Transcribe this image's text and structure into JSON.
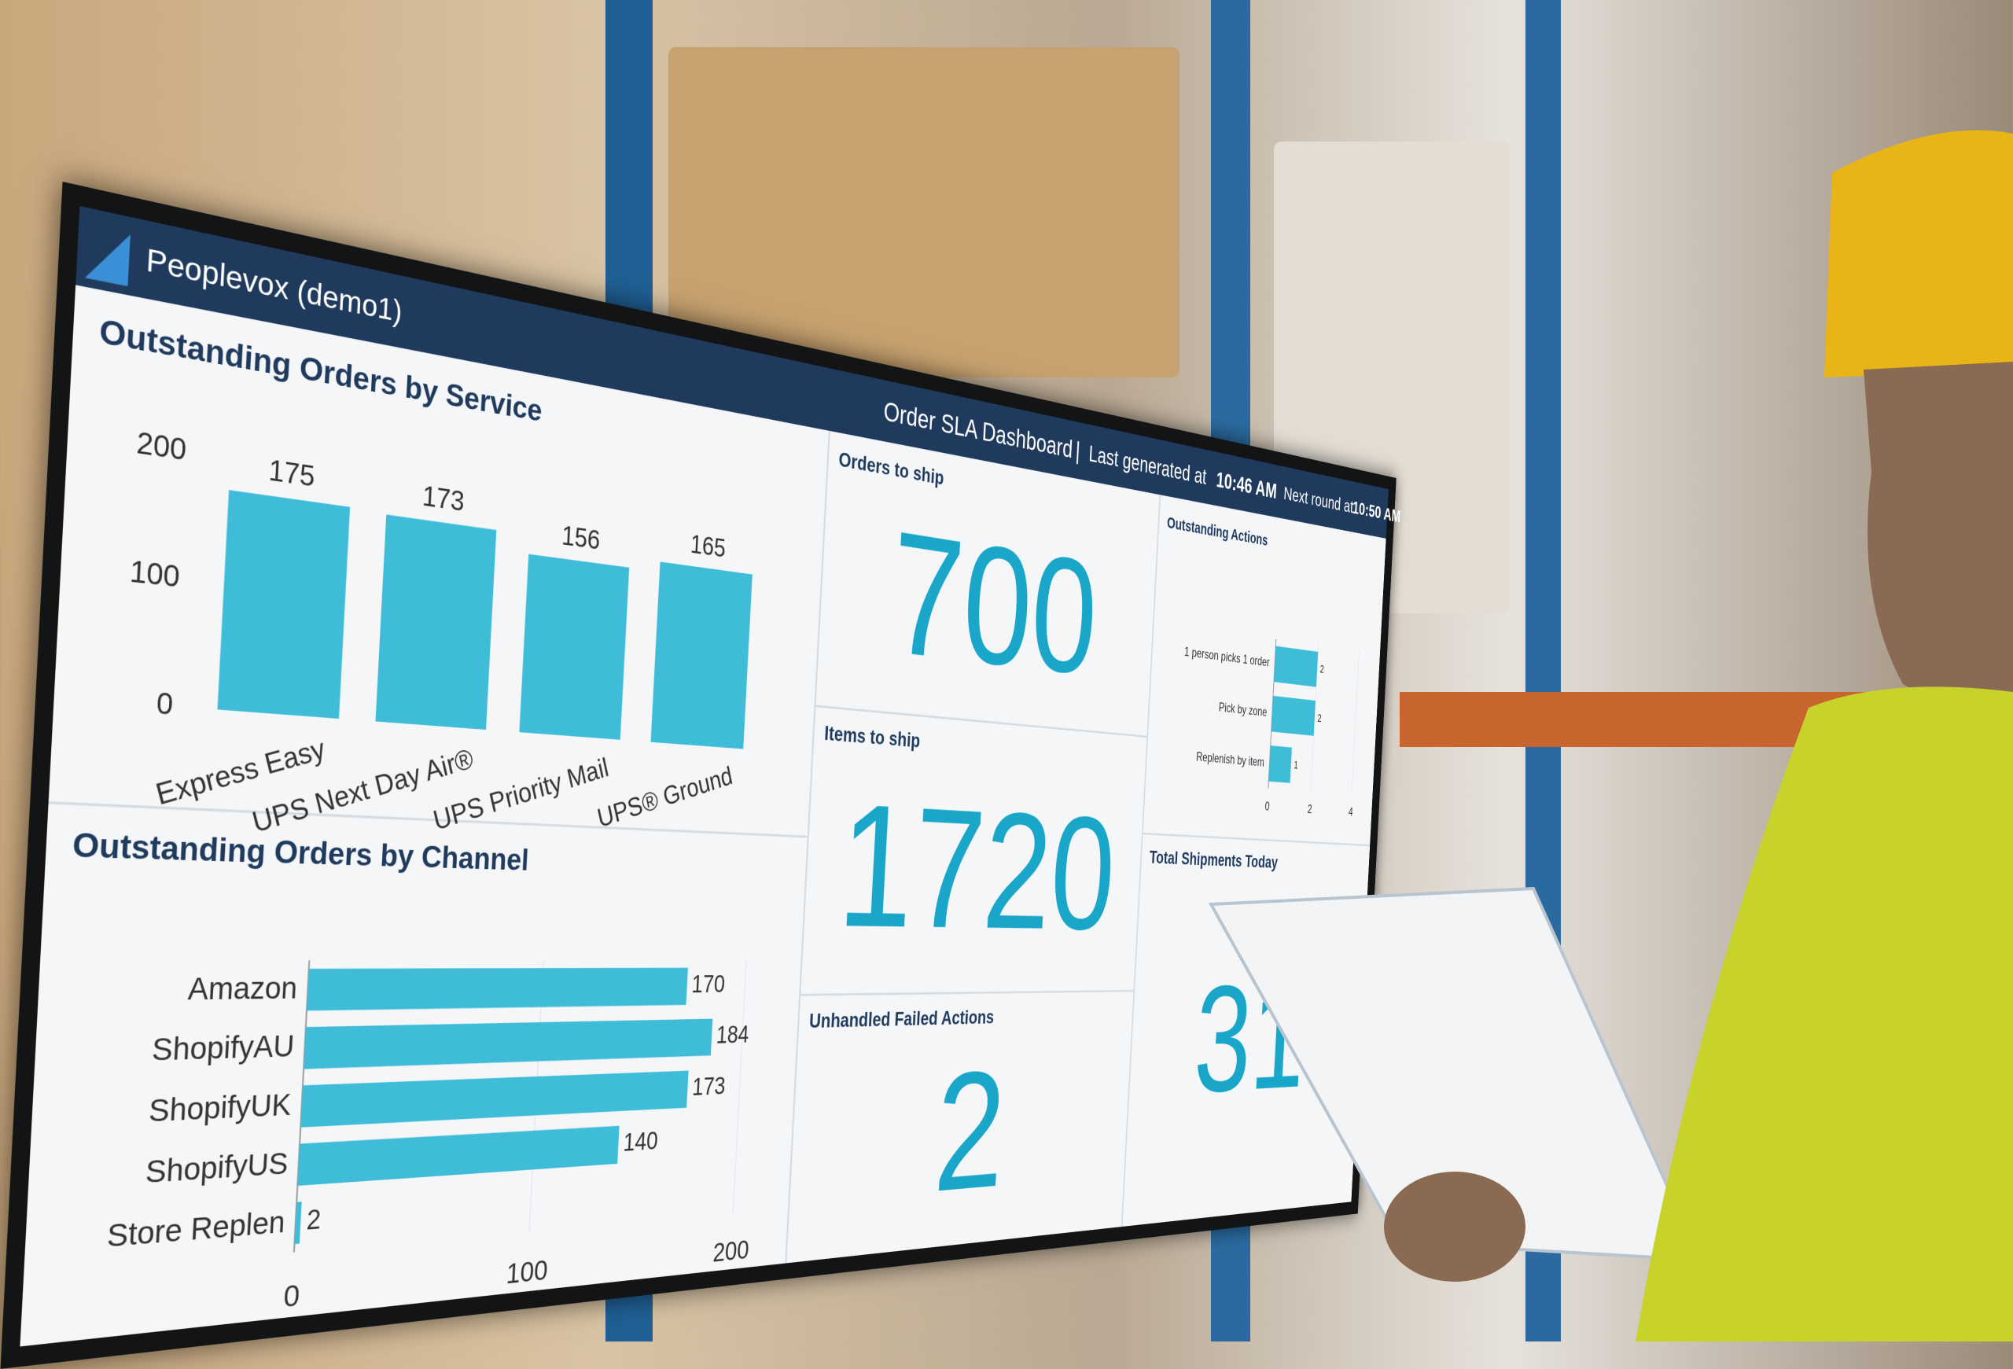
{
  "header": {
    "brand": "Peoplevox (demo1)",
    "title": "Order SLA Dashboard",
    "separator": "|",
    "generated_label": "Last generated at",
    "generated_time": "10:46 AM",
    "next_label": "Next round at",
    "next_time": "10:50 AM"
  },
  "chart_data": [
    {
      "type": "bar",
      "title": "Outstanding Orders by Service",
      "categories": [
        "Express Easy",
        "UPS Next Day Air®",
        "UPS Priority Mail",
        "UPS® Ground"
      ],
      "values": [
        175,
        173,
        156,
        165
      ],
      "color": "#3fbcd8",
      "ylim": [
        0,
        200
      ],
      "yticks": [
        0,
        100,
        200
      ],
      "grid": false
    },
    {
      "type": "hbar",
      "title": "Outstanding Orders by Channel",
      "categories": [
        "Amazon",
        "ShopifyAU",
        "ShopifyUK",
        "ShopifyUS",
        "Store Replen"
      ],
      "values": [
        170,
        184,
        173,
        140,
        2
      ],
      "color": "#3fbcd8",
      "xlim": [
        0,
        200
      ],
      "xticks": [
        0,
        100,
        200
      ],
      "grid": true
    },
    {
      "type": "hbar",
      "title": "Outstanding Actions",
      "categories": [
        "1 person picks 1 order",
        "Pick by zone",
        "Replenish by item"
      ],
      "values": [
        2,
        2,
        1
      ],
      "color": "#3fbcd8",
      "xlim": [
        0,
        4
      ],
      "xticks": [
        0,
        2,
        4
      ],
      "grid": true
    }
  ],
  "kpis": [
    {
      "title": "Orders to ship",
      "value": "700"
    },
    {
      "title": "Items to ship",
      "value": "1720"
    },
    {
      "title": "Unhandled Failed Actions",
      "value": "2"
    },
    {
      "title": "Total Shipments Today",
      "value": "31"
    }
  ]
}
